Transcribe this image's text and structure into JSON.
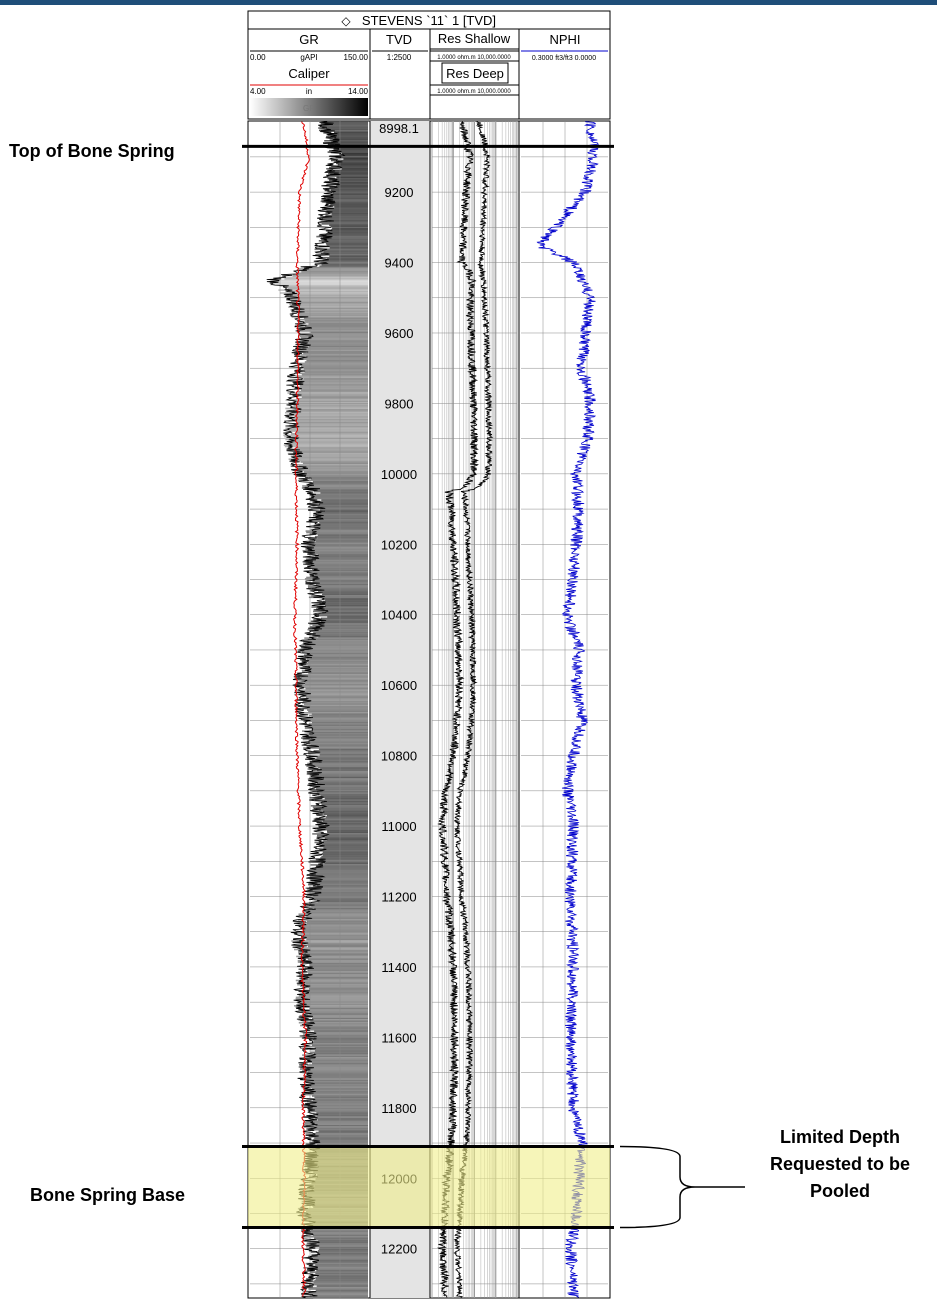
{
  "header": {
    "well_title": "STEVENS `11` 1 [TVD]",
    "tracks": {
      "gr": {
        "name": "GR",
        "min": "0.00",
        "unit": "gAPI",
        "max": "150.00"
      },
      "caliper": {
        "name": "Caliper",
        "min": "4.00",
        "unit": "in",
        "max": "14.00"
      },
      "gr_fill_label": "GR",
      "tvd": {
        "name": "TVD",
        "scale": "1:2500"
      },
      "res_shallow": {
        "name": "Res Shallow",
        "scale": "1.0000 ohm.m 10,000.0000"
      },
      "res_deep": {
        "name": "Res Deep",
        "scale": "1.0000 ohm.m 10,000.0000"
      },
      "nphi": {
        "name": "NPHI",
        "scale": "0.3000 ft3/ft3 0.0000"
      }
    }
  },
  "annotations": {
    "top_of_bone_spring": "Top of Bone Spring",
    "bone_spring_base": "Bone Spring Base",
    "limited_depth_line1": "Limited Depth",
    "limited_depth_line2": "Requested to be",
    "limited_depth_line3": "Pooled"
  },
  "colors": {
    "gr_curve": "#000000",
    "caliper_curve": "#e00000",
    "nphi_curve": "#0000cc",
    "res_curve": "#000000",
    "highlight": "#f0ef8a",
    "depth_track_bg": "#e4e4e4",
    "frame_bar": "#1f4e79"
  },
  "chart_data": {
    "type": "line",
    "title": "STEVENS `11` 1 [TVD]",
    "ylabel": "TVD",
    "y_axis_inverted": true,
    "ylim": [
      8998.1,
      12340
    ],
    "depth_top_label": "8998.1",
    "depth_ticks": [
      9200,
      9400,
      9600,
      9800,
      10000,
      10200,
      10400,
      10600,
      10800,
      11000,
      11200,
      11400,
      11600,
      11800,
      12000,
      12200
    ],
    "markers": [
      {
        "name": "Top of Bone Spring",
        "depth": 9070
      },
      {
        "name": "Bone Spring Base",
        "depth": 12140
      }
    ],
    "highlight_interval": {
      "label": "Limited Depth Requested to be Pooled",
      "top": 11910,
      "base": 12140
    },
    "series": [
      {
        "name": "GR",
        "unit": "gAPI",
        "range": [
          0,
          150
        ],
        "depth": [
          9000,
          9100,
          9200,
          9300,
          9400,
          9450,
          9500,
          9600,
          9700,
          9800,
          9900,
          10000,
          10050,
          10100,
          10200,
          10300,
          10400,
          10500,
          10600,
          10700,
          10800,
          10900,
          11000,
          11100,
          11200,
          11300,
          11400,
          11500,
          11600,
          11700,
          11800,
          11900,
          12000,
          12100,
          12200,
          12300
        ],
        "values": [
          95,
          110,
          100,
          95,
          90,
          30,
          55,
          70,
          60,
          55,
          50,
          65,
          80,
          85,
          75,
          80,
          90,
          70,
          65,
          70,
          80,
          85,
          90,
          85,
          80,
          60,
          70,
          65,
          75,
          70,
          75,
          80,
          75,
          70,
          80,
          75
        ]
      },
      {
        "name": "Caliper",
        "unit": "in",
        "range": [
          4,
          14
        ],
        "depth": [
          9000,
          9100,
          9200,
          9400,
          9600,
          9800,
          10000,
          10200,
          10400,
          10600,
          10800,
          11000,
          11200,
          11400,
          11600,
          11800,
          12000,
          12200,
          12300
        ],
        "values": [
          8.5,
          9.0,
          8.2,
          8.0,
          8.1,
          8.0,
          7.9,
          8.0,
          7.8,
          7.9,
          8.0,
          8.2,
          8.6,
          8.4,
          8.7,
          8.5,
          8.6,
          8.5,
          8.6
        ]
      },
      {
        "name": "Res Shallow",
        "unit": "ohm.m",
        "range": [
          1,
          10000
        ],
        "scale": "log",
        "depth": [
          9000,
          9100,
          9200,
          9300,
          9400,
          9450,
          9500,
          9600,
          9700,
          9800,
          9900,
          10000,
          10050,
          10100,
          10200,
          10400,
          10600,
          10800,
          10900,
          11000,
          11200,
          11400,
          11600,
          11800,
          11900,
          12000,
          12100,
          12200,
          12300
        ],
        "values": [
          20,
          60,
          40,
          30,
          25,
          80,
          60,
          70,
          80,
          90,
          100,
          90,
          6,
          8,
          10,
          15,
          20,
          10,
          4,
          3,
          5,
          10,
          12,
          10,
          8,
          5,
          4,
          3,
          4
        ]
      },
      {
        "name": "Res Deep",
        "unit": "ohm.m",
        "range": [
          1,
          10000
        ],
        "scale": "log",
        "depth": [
          9000,
          9100,
          9200,
          9300,
          9400,
          9500,
          9600,
          9700,
          9800,
          9900,
          10000,
          10050,
          10100,
          10200,
          10400,
          10600,
          10800,
          10900,
          11000,
          11200,
          11400,
          11600,
          11800,
          11900,
          12000,
          12100,
          12200,
          12300
        ],
        "values": [
          150,
          400,
          300,
          250,
          200,
          300,
          350,
          400,
          450,
          500,
          450,
          30,
          40,
          50,
          70,
          90,
          50,
          20,
          15,
          25,
          50,
          60,
          50,
          40,
          25,
          20,
          15,
          20
        ]
      },
      {
        "name": "NPHI",
        "unit": "ft3/ft3",
        "range": [
          0.3,
          0.0
        ],
        "reversed": true,
        "depth": [
          9000,
          9100,
          9200,
          9300,
          9350,
          9400,
          9500,
          9600,
          9700,
          9800,
          9900,
          10000,
          10100,
          10200,
          10300,
          10400,
          10500,
          10600,
          10700,
          10800,
          10900,
          11000,
          11200,
          11400,
          11600,
          11800,
          11900,
          12000,
          12100,
          12200,
          12300
        ],
        "values": [
          0.06,
          0.05,
          0.08,
          0.18,
          0.24,
          0.12,
          0.06,
          0.08,
          0.09,
          0.06,
          0.07,
          0.11,
          0.1,
          0.11,
          0.12,
          0.14,
          0.1,
          0.11,
          0.09,
          0.12,
          0.14,
          0.12,
          0.13,
          0.12,
          0.13,
          0.12,
          0.09,
          0.1,
          0.11,
          0.13,
          0.12
        ]
      }
    ]
  }
}
